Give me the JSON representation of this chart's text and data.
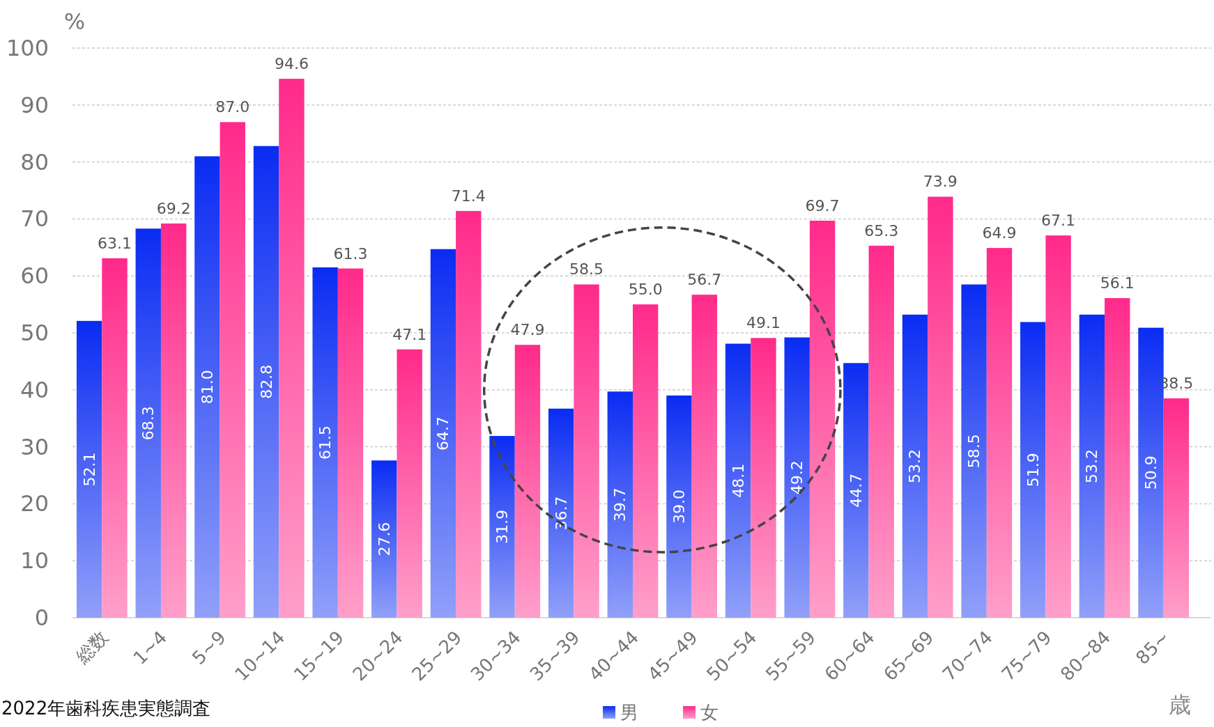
{
  "chart_data": {
    "type": "bar",
    "ylabel": "%",
    "xlabel": "歳",
    "categories": [
      "総数",
      "1~4",
      "5~9",
      "10~14",
      "15~19",
      "20~24",
      "25~29",
      "30~34",
      "35~39",
      "40~44",
      "45~49",
      "50~54",
      "55~59",
      "60~64",
      "65~69",
      "70~74",
      "75~79",
      "80~84",
      "85~"
    ],
    "series": [
      {
        "name": "男",
        "color": "#0a2cf2",
        "values": [
          52.1,
          68.3,
          81.0,
          82.8,
          61.5,
          27.6,
          64.7,
          31.9,
          36.7,
          39.7,
          39.0,
          48.1,
          49.2,
          44.7,
          53.2,
          58.5,
          51.9,
          53.2,
          50.9
        ],
        "value_labels": [
          "52.1",
          "68.3",
          "81.0",
          "82.8",
          "61.5",
          "27.6",
          "64.7",
          "31.9",
          "36.7",
          "39.7",
          "39.0",
          "48.1",
          "49.2",
          "44.7",
          "53.2",
          "58.5",
          "51.9",
          "53.2",
          "50.9"
        ]
      },
      {
        "name": "女",
        "color": "#ff2a8a",
        "values": [
          63.1,
          69.2,
          87.0,
          94.6,
          61.3,
          47.1,
          71.4,
          47.9,
          58.5,
          55.0,
          56.7,
          49.1,
          69.7,
          65.3,
          73.9,
          64.9,
          67.1,
          56.1,
          38.5
        ],
        "value_labels": [
          "63.1",
          "69.2",
          "87.0",
          "94.6",
          "61.3",
          "47.1",
          "71.4",
          "47.9",
          "58.5",
          "55.0",
          "56.7",
          "49.1",
          "69.7",
          "65.3",
          "73.9",
          "64.9",
          "67.1",
          "56.1",
          "38.5"
        ]
      }
    ],
    "ylim": [
      0,
      100
    ],
    "yticks": [
      0,
      10,
      20,
      30,
      40,
      50,
      60,
      70,
      80,
      90,
      100
    ],
    "grid": "y",
    "legend": "bottom",
    "annotations": [
      "2022年歯科疾患実態調査"
    ]
  }
}
